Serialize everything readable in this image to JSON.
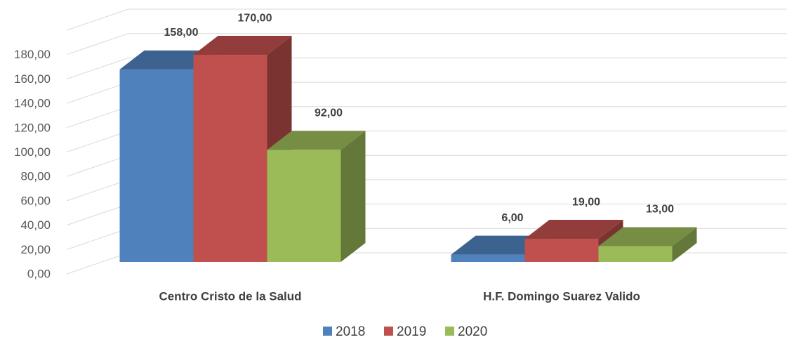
{
  "chart_data": {
    "type": "bar3d",
    "categories": [
      "Centro Cristo de la Salud",
      "H.F. Domingo Suarez Valido"
    ],
    "series": [
      {
        "name": "2018",
        "color": "#4f81bd",
        "values": [
          158,
          6
        ],
        "value_labels": [
          "158,00",
          "6,00"
        ]
      },
      {
        "name": "2019",
        "color": "#c0504d",
        "values": [
          170,
          19
        ],
        "value_labels": [
          "170,00",
          "19,00"
        ]
      },
      {
        "name": "2020",
        "color": "#9bbb59",
        "values": [
          92,
          13
        ],
        "value_labels": [
          "92,00",
          "13,00"
        ]
      }
    ],
    "ylim": [
      0,
      200
    ],
    "yticks": [
      {
        "value": 0,
        "label": "0,00"
      },
      {
        "value": 20,
        "label": "20,00"
      },
      {
        "value": 40,
        "label": "40,00"
      },
      {
        "value": 60,
        "label": "60,00"
      },
      {
        "value": 80,
        "label": "80,00"
      },
      {
        "value": 100,
        "label": "100,00"
      },
      {
        "value": 120,
        "label": "120,00"
      },
      {
        "value": 140,
        "label": "140,00"
      },
      {
        "value": 160,
        "label": "160,00"
      },
      {
        "value": 180,
        "label": "180,00"
      }
    ],
    "grid": true,
    "legend": "bottom"
  }
}
